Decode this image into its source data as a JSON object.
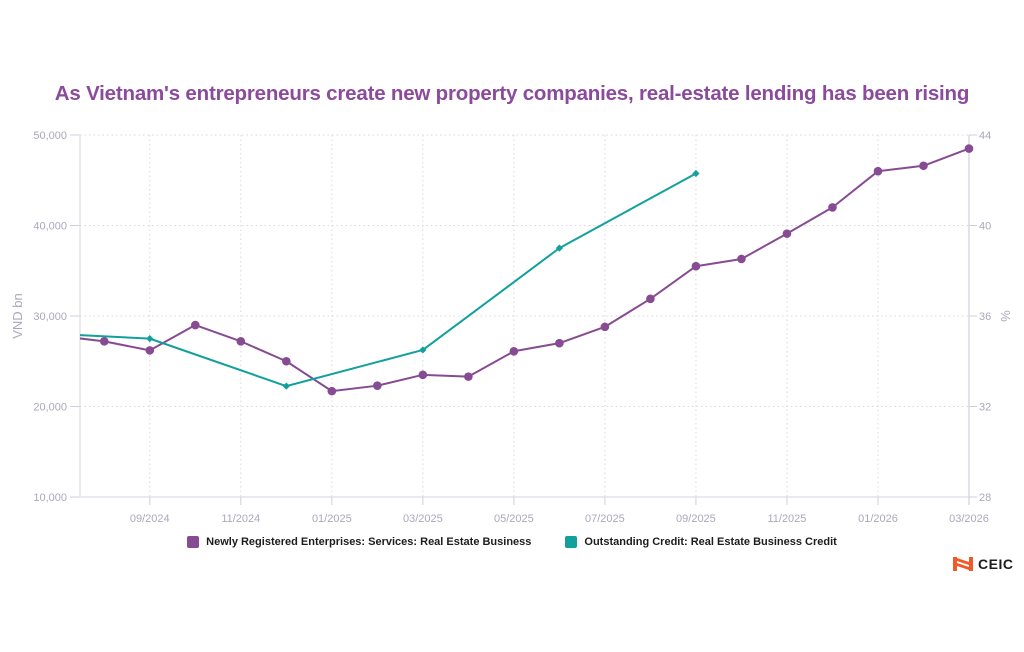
{
  "chart_data": {
    "type": "line",
    "title": "As Vietnam's entrepreneurs create new property companies, real-estate lending has been rising",
    "ylabel": "VND bn",
    "ylabel_right": "%",
    "ylim": [
      10000,
      50000
    ],
    "ylim_right": [
      28,
      44
    ],
    "yticks": [
      "10,000",
      "20,000",
      "30,000",
      "40,000",
      "50,000"
    ],
    "yticks_values": [
      10000,
      20000,
      30000,
      40000,
      50000
    ],
    "yticks_right": [
      "28",
      "32",
      "36",
      "40",
      "44"
    ],
    "yticks_right_values": [
      28,
      32,
      36,
      40,
      44
    ],
    "x_range": [
      "2024-07-15",
      "2026-03"
    ],
    "xticks": [
      "09/2024",
      "11/2024",
      "01/2025",
      "03/2025",
      "05/2025",
      "07/2025",
      "09/2025",
      "11/2025",
      "01/2026",
      "03/2026"
    ],
    "xticks_values": [
      "2024-09",
      "2024-11",
      "2025-01",
      "2025-03",
      "2025-05",
      "2025-07",
      "2025-09",
      "2025-11",
      "2026-01",
      "2026-03"
    ],
    "grid": true,
    "legend_position": "bottom",
    "series": [
      {
        "name": "Newly Registered Enterprises: Services: Real Estate Business",
        "axis": "left",
        "color": "#874b93",
        "marker": "circle",
        "x": [
          "2024-07",
          "2024-08",
          "2024-09",
          "2024-10",
          "2024-11",
          "2024-12",
          "2025-01",
          "2025-02",
          "2025-03",
          "2025-04",
          "2025-05",
          "2025-06",
          "2025-07",
          "2025-08",
          "2025-09",
          "2025-10",
          "2025-11",
          "2025-12",
          "2026-01",
          "2026-02",
          "2026-03"
        ],
        "values": [
          27800,
          27200,
          26200,
          29000,
          27200,
          25000,
          21700,
          22300,
          23500,
          23300,
          26100,
          27000,
          28800,
          31900,
          35500,
          36300,
          39100,
          42000,
          46000,
          46600,
          48500
        ]
      },
      {
        "name": "Outstanding Credit: Real Estate Business Credit",
        "axis": "right",
        "color": "#11a09b",
        "marker": "diamond",
        "x": [
          "2024-06",
          "2024-09",
          "2024-12",
          "2025-03",
          "2025-06",
          "2025-09"
        ],
        "values": [
          35.3,
          35.0,
          32.9,
          34.5,
          39.0,
          42.3
        ]
      }
    ]
  },
  "branding": {
    "logo_text": "CEIC",
    "logo_color": "#f05a28"
  }
}
